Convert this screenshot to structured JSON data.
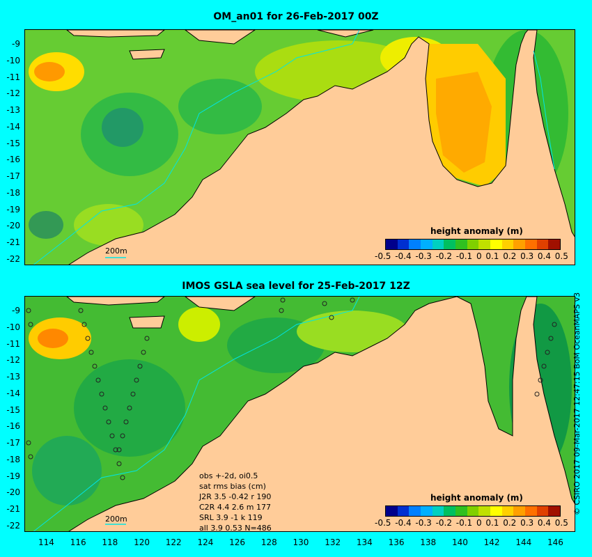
{
  "top_panel": {
    "title": "OM_an01 for 26-Feb-2017 00Z",
    "colorbar_title": "height anomaly (m)",
    "scale_label": "200m",
    "y_ticks": [
      "-9",
      "-10",
      "-11",
      "-12",
      "-13",
      "-14",
      "-15",
      "-16",
      "-17",
      "-18",
      "-19",
      "-20",
      "-21",
      "-22"
    ]
  },
  "bottom_panel": {
    "title": "IMOS GSLA sea level  for 25-Feb-2017 12Z",
    "colorbar_title": "height anomaly (m)",
    "scale_label": "200m",
    "y_ticks": [
      "-9",
      "-10",
      "-11",
      "-12",
      "-13",
      "-14",
      "-15",
      "-16",
      "-17",
      "-18",
      "-19",
      "-20",
      "-21",
      "-22"
    ],
    "stats": [
      "obs +-2d, oi0.5",
      "sat rms bias (cm)",
      "J2R   3.5 -0.42 r 190",
      "C2R   4.4 2.6 m 177",
      "SRL   3.9 -1 k 119",
      "all   3.9 0.53 N=486"
    ]
  },
  "colorbar": {
    "ticks": [
      "-0.5",
      "-0.4",
      "-0.3",
      "-0.2",
      "-0.1",
      "0",
      "0.1",
      "0.2",
      "0.3",
      "0.4",
      "0.5"
    ],
    "colors": [
      "#00008b",
      "#0030d0",
      "#0080ff",
      "#00b0ff",
      "#00d0c0",
      "#00c060",
      "#30c020",
      "#80d000",
      "#c0e000",
      "#ffff00",
      "#ffd000",
      "#ffa000",
      "#ff7000",
      "#e04000",
      "#a01000"
    ]
  },
  "x_ticks": [
    "114",
    "116",
    "118",
    "120",
    "122",
    "124",
    "126",
    "128",
    "130",
    "132",
    "134",
    "136",
    "138",
    "140",
    "142",
    "144",
    "146"
  ],
  "credit": "© CSIRO 2017  09-Mar-2017 12:47:15 BoM OceanMAPS v3",
  "colors": {
    "land": "#ffcc99",
    "background": "#00ffff",
    "ocean_base": "#66cc33"
  }
}
